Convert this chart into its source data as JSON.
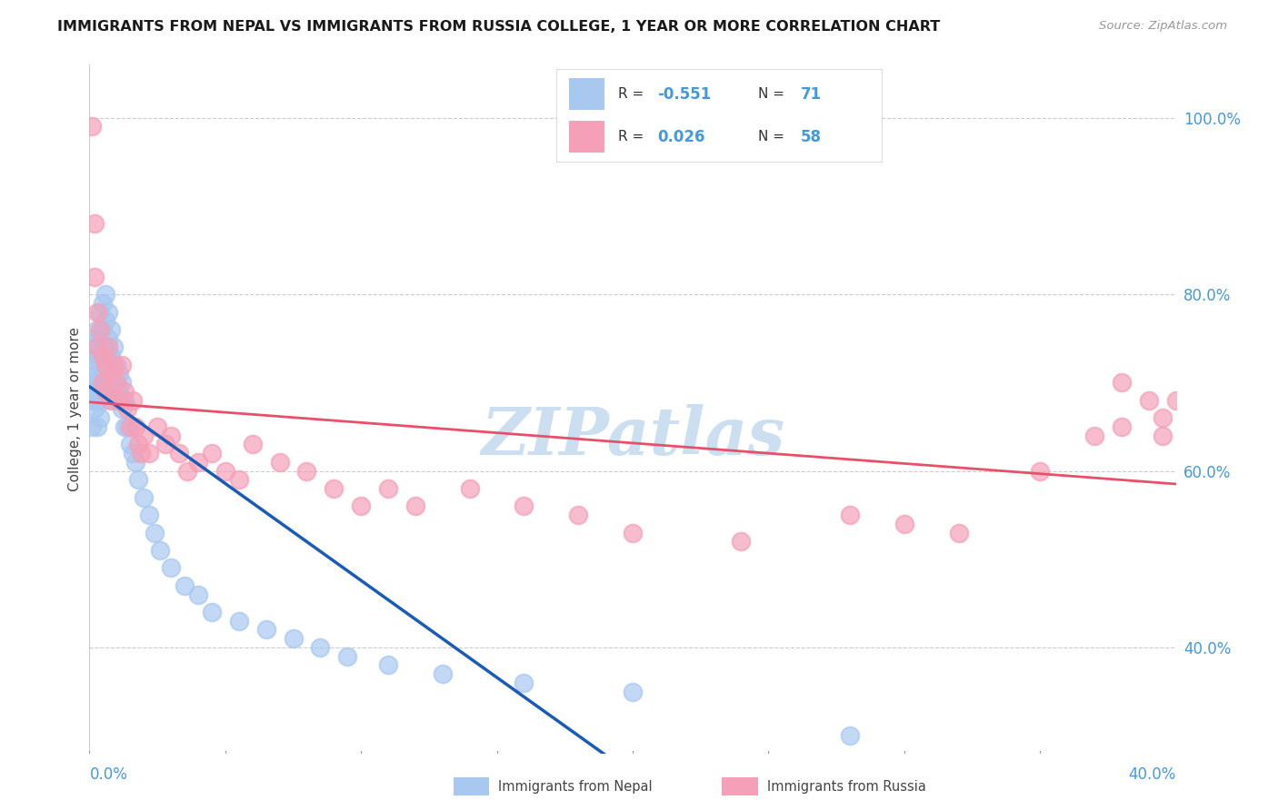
{
  "title": "IMMIGRANTS FROM NEPAL VS IMMIGRANTS FROM RUSSIA COLLEGE, 1 YEAR OR MORE CORRELATION CHART",
  "source": "Source: ZipAtlas.com",
  "ylabel": "College, 1 year or more",
  "legend_nepal_R": "-0.551",
  "legend_nepal_N": "71",
  "legend_russia_R": "0.026",
  "legend_russia_N": "58",
  "nepal_color": "#a8c8f0",
  "russia_color": "#f5a0b8",
  "nepal_line_color": "#1a5cb5",
  "russia_line_color": "#e8506a",
  "watermark_color": "#ccdff0",
  "background_color": "#ffffff",
  "grid_color": "#cccccc",
  "right_tick_color": "#4499dd",
  "xlim": [
    0.0,
    0.4
  ],
  "ylim": [
    0.28,
    1.06
  ],
  "y_ticks": [
    0.4,
    0.6,
    0.8,
    1.0
  ],
  "nepal_x": [
    0.001,
    0.001,
    0.001,
    0.001,
    0.002,
    0.002,
    0.002,
    0.002,
    0.002,
    0.002,
    0.003,
    0.003,
    0.003,
    0.003,
    0.003,
    0.004,
    0.004,
    0.004,
    0.004,
    0.004,
    0.005,
    0.005,
    0.005,
    0.005,
    0.005,
    0.006,
    0.006,
    0.006,
    0.006,
    0.007,
    0.007,
    0.007,
    0.007,
    0.008,
    0.008,
    0.008,
    0.009,
    0.009,
    0.009,
    0.01,
    0.01,
    0.01,
    0.011,
    0.011,
    0.012,
    0.012,
    0.013,
    0.013,
    0.014,
    0.015,
    0.016,
    0.017,
    0.018,
    0.02,
    0.022,
    0.024,
    0.026,
    0.03,
    0.035,
    0.04,
    0.045,
    0.055,
    0.065,
    0.075,
    0.085,
    0.095,
    0.11,
    0.13,
    0.16,
    0.2,
    0.28
  ],
  "nepal_y": [
    0.7,
    0.68,
    0.72,
    0.65,
    0.74,
    0.71,
    0.69,
    0.73,
    0.67,
    0.75,
    0.76,
    0.73,
    0.7,
    0.68,
    0.65,
    0.78,
    0.75,
    0.72,
    0.69,
    0.66,
    0.79,
    0.76,
    0.74,
    0.71,
    0.68,
    0.8,
    0.77,
    0.74,
    0.71,
    0.78,
    0.75,
    0.73,
    0.7,
    0.76,
    0.73,
    0.71,
    0.74,
    0.72,
    0.69,
    0.72,
    0.7,
    0.68,
    0.71,
    0.69,
    0.7,
    0.67,
    0.68,
    0.65,
    0.65,
    0.63,
    0.62,
    0.61,
    0.59,
    0.57,
    0.55,
    0.53,
    0.51,
    0.49,
    0.47,
    0.46,
    0.44,
    0.43,
    0.42,
    0.41,
    0.4,
    0.39,
    0.38,
    0.37,
    0.36,
    0.35,
    0.3
  ],
  "russia_x": [
    0.001,
    0.002,
    0.002,
    0.003,
    0.003,
    0.004,
    0.005,
    0.005,
    0.006,
    0.006,
    0.007,
    0.008,
    0.008,
    0.009,
    0.01,
    0.011,
    0.012,
    0.013,
    0.014,
    0.015,
    0.016,
    0.017,
    0.018,
    0.019,
    0.02,
    0.022,
    0.025,
    0.028,
    0.03,
    0.033,
    0.036,
    0.04,
    0.045,
    0.05,
    0.055,
    0.06,
    0.07,
    0.08,
    0.09,
    0.1,
    0.11,
    0.12,
    0.14,
    0.16,
    0.18,
    0.2,
    0.24,
    0.28,
    0.3,
    0.32,
    0.35,
    0.37,
    0.38,
    0.38,
    0.39,
    0.395,
    0.395,
    0.4
  ],
  "russia_y": [
    0.99,
    0.88,
    0.82,
    0.78,
    0.74,
    0.76,
    0.73,
    0.7,
    0.72,
    0.69,
    0.74,
    0.71,
    0.68,
    0.72,
    0.7,
    0.68,
    0.72,
    0.69,
    0.67,
    0.65,
    0.68,
    0.65,
    0.63,
    0.62,
    0.64,
    0.62,
    0.65,
    0.63,
    0.64,
    0.62,
    0.6,
    0.61,
    0.62,
    0.6,
    0.59,
    0.63,
    0.61,
    0.6,
    0.58,
    0.56,
    0.58,
    0.56,
    0.58,
    0.56,
    0.55,
    0.53,
    0.52,
    0.55,
    0.54,
    0.53,
    0.6,
    0.64,
    0.65,
    0.7,
    0.68,
    0.66,
    0.64,
    0.68
  ],
  "nepal_line_x0": 0.0,
  "nepal_line_x1": 0.22,
  "nepal_line_dash_x0": 0.2,
  "nepal_line_dash_x1": 0.4,
  "russia_line_x0": 0.0,
  "russia_line_x1": 0.4
}
